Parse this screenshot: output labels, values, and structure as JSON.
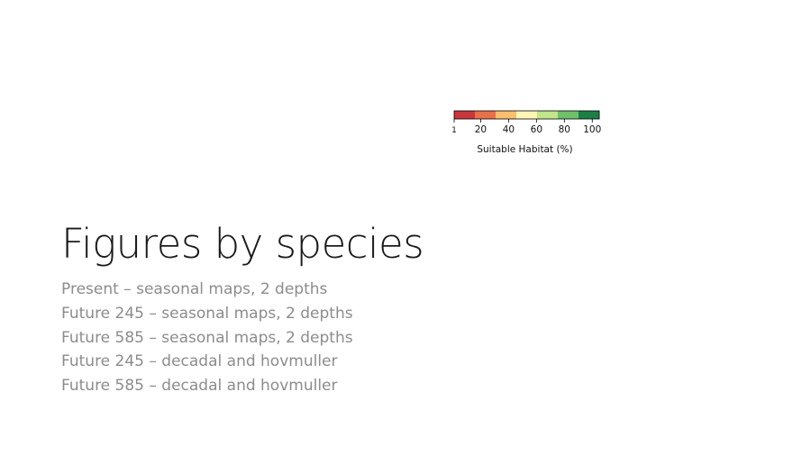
{
  "slide": {
    "title": "Figures by species",
    "bullets": [
      "Present – seasonal maps, 2 depths",
      "Future 245 – seasonal maps, 2 depths",
      "Future 585 – seasonal maps, 2 depths",
      "Future 245 – decadal and hovmuller",
      "Future 585 – decadal and hovmuller"
    ]
  },
  "colorbar": {
    "label": "Suitable Habitat (%)",
    "range": [
      1,
      105
    ],
    "ticks": [
      {
        "value": 1,
        "label": "1"
      },
      {
        "value": 20,
        "label": "20"
      },
      {
        "value": 40,
        "label": "40"
      },
      {
        "value": 60,
        "label": "60"
      },
      {
        "value": 80,
        "label": "80"
      },
      {
        "value": 100,
        "label": "100"
      }
    ],
    "colors": [
      "#c8373b",
      "#e8704a",
      "#fbbf6f",
      "#fff5b7",
      "#c3e58c",
      "#6fbf6b",
      "#1c7f45"
    ]
  }
}
